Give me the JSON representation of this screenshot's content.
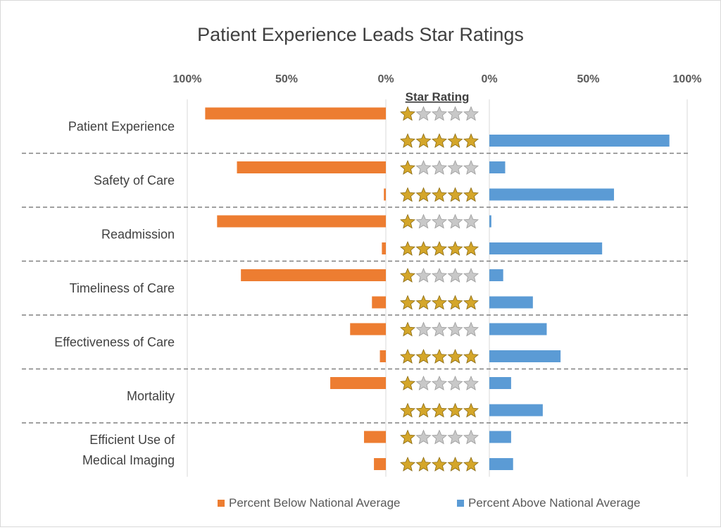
{
  "chart_data": {
    "type": "bar",
    "title": "Patient Experience Leads Star Ratings",
    "center_header": "Star Rating",
    "left_ticks": [
      "100%",
      "50%",
      "0%"
    ],
    "right_ticks": [
      "0%",
      "50%",
      "100%"
    ],
    "left_range": [
      0,
      100
    ],
    "right_range": [
      0,
      100
    ],
    "grid": false,
    "legend_position": "bottom",
    "colors": {
      "below": "#ED7D31",
      "above": "#5B9BD5",
      "divider": "#808080",
      "star_gold": "#D4A62A",
      "star_gray": "#C8C8C8"
    },
    "row_stars": [
      1,
      5
    ],
    "categories": [
      "Patient Experience",
      "Safety of Care",
      "Readmission",
      "Timeliness of Care",
      "Effectiveness of Care",
      "Mortality",
      "Efficient Use of Medical Imaging"
    ],
    "category_lines": [
      [
        "Patient Experience"
      ],
      [
        "Safety of Care"
      ],
      [
        "Readmission"
      ],
      [
        "Timeliness of Care"
      ],
      [
        "Effectiveness of Care"
      ],
      [
        "Mortality"
      ],
      [
        "Efficient Use of",
        "Medical Imaging"
      ]
    ],
    "series": [
      {
        "name": "Percent Below National Average",
        "side": "left",
        "values": [
          [
            91,
            0
          ],
          [
            75,
            1
          ],
          [
            85,
            2
          ],
          [
            73,
            7
          ],
          [
            18,
            3
          ],
          [
            28,
            0
          ],
          [
            11,
            6
          ]
        ]
      },
      {
        "name": "Percent Above National Average",
        "side": "right",
        "values": [
          [
            0,
            91
          ],
          [
            8,
            63
          ],
          [
            1,
            57
          ],
          [
            7,
            22
          ],
          [
            29,
            36
          ],
          [
            11,
            27
          ],
          [
            11,
            12
          ]
        ]
      }
    ]
  }
}
